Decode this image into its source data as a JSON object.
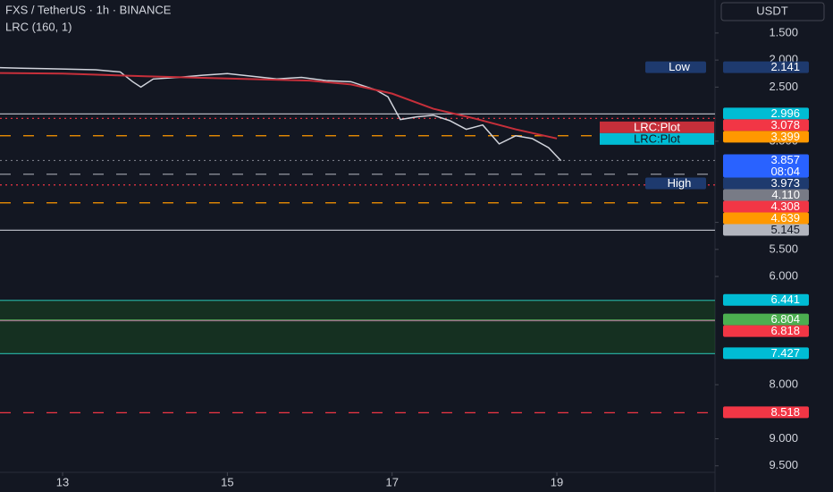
{
  "chart_data": {
    "type": "line",
    "title": "FXS / TetherUS · 1h · BINANCE",
    "subtitle": "LRC (160, 1)",
    "currency": "USDT",
    "inverted": true,
    "xlim": [
      12.24,
      20.92
    ],
    "xticks": [
      13,
      15,
      17,
      19
    ],
    "ylim": [
      0.89,
      9.62
    ],
    "yticks": [
      {
        "value": 1.5,
        "label": "1.500"
      },
      {
        "value": 2,
        "label": "2.000"
      },
      {
        "value": 2.5,
        "label": "2.500"
      },
      {
        "value": 3.5,
        "label": "3.500"
      },
      {
        "value": 5,
        "label": "5.000"
      },
      {
        "value": 5.5,
        "label": "5.500"
      },
      {
        "value": 6,
        "label": "6.000"
      },
      {
        "value": 8,
        "label": "8.000"
      },
      {
        "value": 9,
        "label": "9.000"
      },
      {
        "value": 9.5,
        "label": "9.500"
      }
    ],
    "series": [
      {
        "color": "#d1d4dc",
        "x": [
          12.24,
          12.5,
          12.8,
          13.1,
          13.4,
          13.7,
          13.85,
          13.95,
          14.1,
          14.4,
          14.7,
          15.0,
          15.3,
          15.6,
          15.9,
          16.2,
          16.5,
          16.8,
          16.95,
          17.1,
          17.3,
          17.5,
          17.7,
          17.9,
          18.1,
          18.3,
          18.5,
          18.7,
          18.9,
          19.05
        ],
        "values": [
          2.14,
          2.15,
          2.16,
          2.17,
          2.18,
          2.22,
          2.4,
          2.5,
          2.35,
          2.32,
          2.28,
          2.25,
          2.3,
          2.35,
          2.32,
          2.38,
          2.4,
          2.55,
          2.68,
          3.1,
          3.05,
          3.02,
          3.12,
          3.28,
          3.2,
          3.55,
          3.4,
          3.45,
          3.62,
          3.86
        ]
      },
      {
        "name": "LRC:Plot",
        "color": "#c62f3a",
        "x": [
          12.24,
          13,
          14,
          15,
          16,
          16.5,
          17,
          17.5,
          18,
          18.5,
          19
        ],
        "values": [
          2.24,
          2.25,
          2.3,
          2.34,
          2.38,
          2.45,
          2.62,
          2.9,
          3.08,
          3.28,
          3.45
        ]
      }
    ],
    "plot_tags": [
      {
        "label": "LRC:Plot",
        "color": "#00bcd4"
      }
    ],
    "zone": {
      "from": 6.441,
      "to": 7.427,
      "color": "#1b5e20"
    },
    "levels": [
      {
        "value": 2.141,
        "value_label": "2.141",
        "tag": "Low",
        "color": "#1e3a6e",
        "style": "none"
      },
      {
        "value": 2.996,
        "value_label": "2.996",
        "color": "#00bcd4",
        "line": "#b2b5be",
        "style": "solid"
      },
      {
        "value": 3.078,
        "value_label": "3.078",
        "color": "#f23645",
        "line": "#f23645",
        "style": "dotted"
      },
      {
        "value": 3.399,
        "value_label": "3.399",
        "color": "#ff9800",
        "line": "#ff9800",
        "style": "dashed"
      },
      {
        "value": 3.857,
        "value_label": "3.857",
        "countdown": "08:04",
        "color": "#2962ff",
        "line": "#787b86",
        "style": "dotted"
      },
      {
        "value": 3.973,
        "value_label": "3.973",
        "tag": "High",
        "color": "#1e3a6e",
        "style": "none"
      },
      {
        "value": 4.11,
        "value_label": "4.110",
        "color": "#787b86",
        "line": "#9598a1",
        "style": "dashed"
      },
      {
        "value": 4.308,
        "value_label": "4.308",
        "color": "#f23645",
        "line": "#f23645",
        "style": "dotted"
      },
      {
        "value": 4.639,
        "value_label": "4.639",
        "color": "#ff9800",
        "line": "#ff9800",
        "style": "dashed"
      },
      {
        "value": 5.145,
        "value_label": "5.145",
        "color": "#b2b5be",
        "line": "#b2b5be",
        "style": "solid"
      },
      {
        "value": 6.441,
        "value_label": "6.441",
        "color": "#00bcd4",
        "line": "#26a69a",
        "style": "solid"
      },
      {
        "value": 6.804,
        "value_label": "6.804",
        "color": "#4caf50",
        "line": "#4caf50",
        "style": "solid"
      },
      {
        "value": 6.818,
        "value_label": "6.818",
        "color": "#f23645",
        "line": "#9c6b8a",
        "style": "solid"
      },
      {
        "value": 7.427,
        "value_label": "7.427",
        "color": "#00bcd4",
        "line": "#26a69a",
        "style": "solid"
      },
      {
        "value": 8.518,
        "value_label": "8.518",
        "color": "#f23645",
        "line": "#f23645",
        "style": "dashed"
      }
    ]
  }
}
